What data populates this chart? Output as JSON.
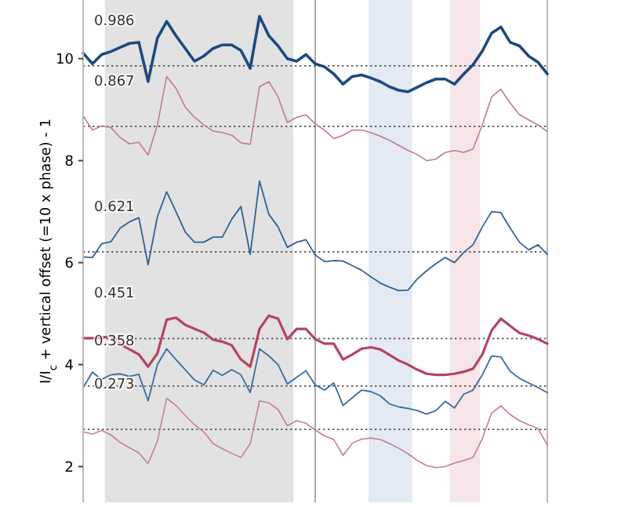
{
  "chart_data": {
    "type": "line",
    "ylabel": "I/I$_{c}$ + vertical offset (=10 x phase) - 1",
    "categories": [
      null,
      null,
      null,
      null,
      null,
      null,
      null,
      null,
      null,
      null,
      null,
      null,
      null,
      null,
      null,
      null,
      null,
      null,
      null,
      null,
      null,
      null,
      null,
      null,
      null,
      null,
      null,
      null,
      null,
      null,
      null,
      null,
      null,
      null,
      null,
      null,
      null,
      null,
      null,
      null,
      null,
      null,
      null,
      null,
      null,
      null,
      null,
      null,
      null,
      null,
      null
    ],
    "ylim": [
      1.3,
      11.15
    ],
    "yticks": [
      2,
      4,
      6,
      8,
      10
    ],
    "tick_labels": "y",
    "grid": false,
    "ref_lines": [
      {
        "axis": "y",
        "value": 9.86,
        "color": "#555555",
        "line_style": "dotted"
      },
      {
        "axis": "y",
        "value": 8.67,
        "color": "#555555",
        "line_style": "dotted"
      },
      {
        "axis": "y",
        "value": 6.21,
        "color": "#555555",
        "line_style": "dotted"
      },
      {
        "axis": "y",
        "value": 4.51,
        "color": "#555555",
        "line_style": "dotted"
      },
      {
        "axis": "y",
        "value": 3.58,
        "color": "#555555",
        "line_style": "dotted"
      },
      {
        "axis": "y",
        "value": 2.73,
        "color": "#555555",
        "line_style": "dotted"
      }
    ],
    "annotations": [
      {
        "text": "0.986",
        "y": 9.86
      },
      {
        "text": "0.867",
        "y": 8.67
      },
      {
        "text": "0.621",
        "y": 6.21
      },
      {
        "text": "0.451",
        "y": 4.51
      },
      {
        "text": "0.358",
        "y": 3.58
      },
      {
        "text": "0.273",
        "y": 2.73
      }
    ],
    "series": [
      {
        "color": "#1b4a80",
        "values": [
          10.11,
          9.9,
          10.08,
          10.14,
          10.22,
          10.3,
          10.32,
          9.55,
          10.4,
          10.73,
          10.45,
          10.2,
          9.95,
          10.05,
          10.2,
          10.27,
          10.27,
          10.16,
          9.81,
          10.83,
          10.45,
          10.25,
          10.0,
          9.95,
          10.08,
          9.9,
          9.84,
          9.7,
          9.5,
          9.65,
          9.68,
          9.62,
          9.55,
          9.45,
          9.38,
          9.35,
          9.44,
          9.53,
          9.6,
          9.6,
          9.5,
          9.7,
          9.88,
          10.15,
          10.5,
          10.62,
          10.32,
          10.25,
          10.05,
          9.93,
          9.7
        ]
      },
      {
        "color": "#c27a8b",
        "values": [
          8.88,
          8.6,
          8.68,
          8.65,
          8.45,
          8.33,
          8.36,
          8.11,
          8.7,
          9.65,
          9.42,
          9.05,
          8.85,
          8.7,
          8.58,
          8.55,
          8.5,
          8.35,
          8.32,
          9.45,
          9.55,
          9.25,
          8.75,
          8.85,
          8.9,
          8.72,
          8.6,
          8.43,
          8.5,
          8.6,
          8.6,
          8.55,
          8.48,
          8.4,
          8.3,
          8.2,
          8.12,
          8.0,
          8.03,
          8.16,
          8.2,
          8.16,
          8.23,
          8.7,
          9.25,
          9.4,
          9.13,
          8.9,
          8.8,
          8.7,
          8.57
        ]
      },
      {
        "color": "#2f6396",
        "values": [
          6.11,
          6.1,
          6.37,
          6.41,
          6.68,
          6.8,
          6.88,
          5.96,
          6.9,
          7.39,
          7.0,
          6.6,
          6.4,
          6.4,
          6.5,
          6.5,
          6.85,
          7.1,
          6.16,
          7.6,
          6.95,
          6.7,
          6.3,
          6.4,
          6.45,
          6.15,
          6.02,
          6.04,
          6.03,
          5.94,
          5.85,
          5.72,
          5.6,
          5.52,
          5.45,
          5.46,
          5.68,
          5.84,
          5.98,
          6.1,
          6.0,
          6.2,
          6.35,
          6.7,
          7.0,
          6.98,
          6.68,
          6.4,
          6.25,
          6.35,
          6.16
        ]
      },
      {
        "color": "#b5445f",
        "values": [
          4.52,
          4.52,
          4.53,
          4.55,
          4.4,
          4.3,
          4.2,
          3.96,
          4.22,
          4.88,
          4.92,
          4.78,
          4.7,
          4.63,
          4.49,
          4.45,
          4.38,
          4.1,
          3.96,
          4.7,
          4.96,
          4.9,
          4.5,
          4.7,
          4.7,
          4.5,
          4.41,
          4.41,
          4.1,
          4.2,
          4.31,
          4.34,
          4.3,
          4.19,
          4.08,
          4.0,
          3.9,
          3.82,
          3.8,
          3.8,
          3.82,
          3.86,
          3.92,
          4.2,
          4.67,
          4.9,
          4.76,
          4.62,
          4.57,
          4.5,
          4.41
        ]
      },
      {
        "color": "#3a6d9f",
        "values": [
          3.55,
          3.85,
          3.71,
          3.8,
          3.82,
          3.77,
          3.81,
          3.29,
          4.0,
          4.31,
          4.1,
          3.9,
          3.7,
          3.6,
          3.89,
          3.79,
          3.9,
          3.8,
          3.45,
          4.31,
          4.17,
          4.0,
          3.62,
          3.75,
          3.88,
          3.6,
          3.5,
          3.64,
          3.2,
          3.35,
          3.5,
          3.47,
          3.39,
          3.23,
          3.17,
          3.14,
          3.1,
          3.03,
          3.1,
          3.28,
          3.15,
          3.42,
          3.5,
          3.8,
          4.17,
          4.15,
          3.87,
          3.73,
          3.64,
          3.55,
          3.45
        ]
      },
      {
        "color": "#c4808f",
        "values": [
          2.68,
          2.64,
          2.71,
          2.62,
          2.47,
          2.37,
          2.27,
          2.06,
          2.5,
          3.34,
          3.2,
          3.0,
          2.82,
          2.68,
          2.45,
          2.35,
          2.26,
          2.18,
          2.45,
          3.29,
          3.25,
          3.12,
          2.8,
          2.9,
          2.85,
          2.72,
          2.6,
          2.53,
          2.22,
          2.46,
          2.54,
          2.56,
          2.53,
          2.45,
          2.36,
          2.25,
          2.12,
          2.02,
          1.98,
          2.0,
          2.07,
          2.12,
          2.18,
          2.55,
          3.05,
          3.19,
          3.02,
          2.9,
          2.82,
          2.75,
          2.42
        ]
      }
    ]
  }
}
